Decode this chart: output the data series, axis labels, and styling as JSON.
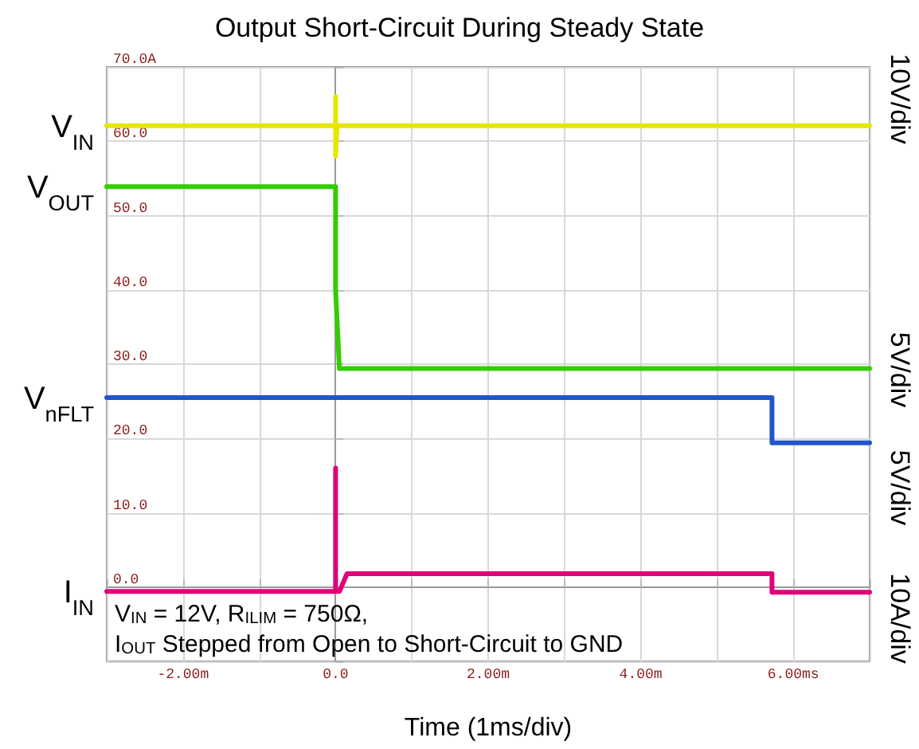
{
  "chart_data": {
    "type": "line",
    "title": "Output Short-Circuit During Steady State",
    "xlabel": "Time (1ms/div)",
    "xlim": [
      -3,
      7
    ],
    "xticks": [
      {
        "value": -3,
        "label": null
      },
      {
        "value": -2,
        "label": "-2.00m"
      },
      {
        "value": -1,
        "label": null
      },
      {
        "value": 0,
        "label": "0.0"
      },
      {
        "value": 1,
        "label": null
      },
      {
        "value": 2,
        "label": "2.00m"
      },
      {
        "value": 3,
        "label": null
      },
      {
        "value": 4,
        "label": "4.00m"
      },
      {
        "value": 5,
        "label": null
      },
      {
        "value": 6,
        "label": "6.00ms"
      },
      {
        "value": 7,
        "label": null
      }
    ],
    "ylim": [
      -10,
      70
    ],
    "yticks": [
      {
        "value": -10,
        "label": null
      },
      {
        "value": 0,
        "label": "0.0"
      },
      {
        "value": 10,
        "label": "10.0"
      },
      {
        "value": 20,
        "label": "20.0"
      },
      {
        "value": 30,
        "label": "30.0"
      },
      {
        "value": 40,
        "label": "40.0"
      },
      {
        "value": 50,
        "label": "50.0"
      },
      {
        "value": 60,
        "label": "60.0"
      },
      {
        "value": 70,
        "label": "70.0A"
      }
    ],
    "series": [
      {
        "name": "V$_{IN}$",
        "color": "#e6e600",
        "x": [
          -3,
          0,
          0,
          0,
          0.02,
          7
        ],
        "values": [
          62.1,
          62.1,
          66,
          58,
          62.1,
          62.1
        ]
      },
      {
        "name": "V$_{OUT}$",
        "color": "#33cc00",
        "x": [
          -3,
          0,
          0,
          0.05,
          7
        ],
        "values": [
          53.9,
          53.9,
          40,
          29.4,
          29.4
        ]
      },
      {
        "name": "V$_{nFLT}$",
        "color": "#2255cc",
        "x": [
          -3,
          5.72,
          5.72,
          7
        ],
        "values": [
          25.5,
          25.5,
          19.4,
          19.4
        ]
      },
      {
        "name": "I$_{IN}$",
        "color": "#e0007a",
        "x": [
          -3,
          0,
          0,
          0,
          0.05,
          0.15,
          5.72,
          5.72,
          7
        ],
        "values": [
          -0.6,
          -0.6,
          16,
          -0.6,
          -0.6,
          1.8,
          1.8,
          -0.7,
          -0.7
        ]
      }
    ],
    "annotations": [
      "10V/div",
      "5V/div",
      "5V/div",
      "10A/div",
      "V$_{IN}$ = 12V, R$_{ILIM}$ = 750Ω,",
      "I$_{OUT}$ Stepped from Open to Short-Circuit to GND"
    ],
    "grid": true,
    "legend": false,
    "marker": "none",
    "line_style": "solid"
  }
}
